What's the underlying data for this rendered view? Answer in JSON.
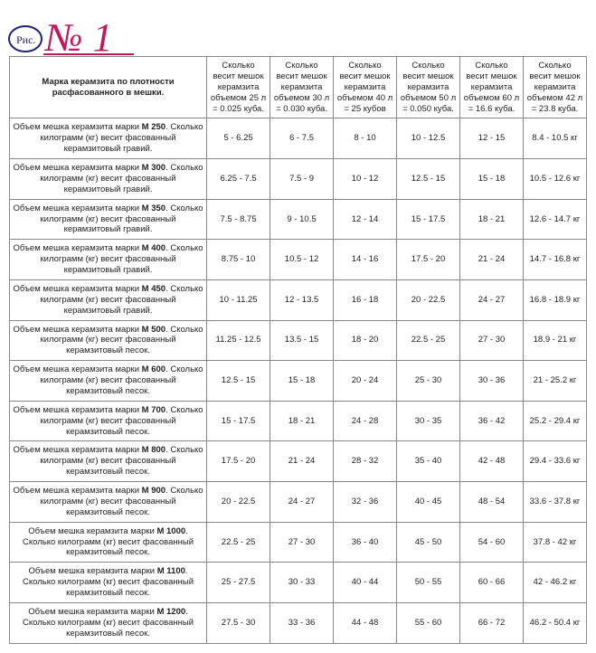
{
  "annotation": {
    "text": "№ 1",
    "prefix": "Рис."
  },
  "header": {
    "first": "Марка керамзита по плотности расфасованного в мешки.",
    "cols": [
      "Сколько весит мешок керамзита объемом 25 л = 0.025 куба.",
      "Сколько весит мешок керамзита объемом 30 л = 0.030 куба.",
      "Сколько весит мешок керамзита объемом 40 л = 25 кубов",
      "Сколько весит мешок керамзита объемом 50 л = 0.050 куба.",
      "Сколько весит мешок керамзита объемом 60 л = 16.6 куба.",
      "Сколько весит мешок керамзита объемом 42 л = 23.8 куба."
    ]
  },
  "rows": [
    {
      "label": "Объем мешка керамзита марки М 250. Сколько килограмм (кг) весит фасованный керамзитовый гравий.",
      "v": [
        "5 - 6.25",
        "6 - 7.5",
        "8 - 10",
        "10 - 12.5",
        "12 - 15",
        "8.4 - 10.5 кг"
      ]
    },
    {
      "label": "Объем мешка керамзита марки М 300. Сколько килограмм (кг) весит фасованный керамзитовый гравий.",
      "v": [
        "6.25 - 7.5",
        "7.5 - 9",
        "10 - 12",
        "12.5 - 15",
        "15 - 18",
        "10.5 - 12.6 кг"
      ]
    },
    {
      "label": "Объем мешка керамзита марки М 350. Сколько килограмм (кг) весит фасованный керамзитовый гравий.",
      "v": [
        "7.5 - 8.75",
        "9 - 10.5",
        "12 - 14",
        "15 - 17.5",
        "18 - 21",
        "12.6 - 14.7 кг"
      ]
    },
    {
      "label": "Объем мешка керамзита марки М 400. Сколько килограмм (кг) весит фасованный керамзитовый гравий.",
      "v": [
        "8.75 - 10",
        "10.5 - 12",
        "14 - 16",
        "17.5 - 20",
        "21 - 24",
        "14.7 - 16.8 кг"
      ]
    },
    {
      "label": "Объем мешка керамзита марки М 450. Сколько килограмм (кг) весит фасованный керамзитовый гравий.",
      "v": [
        "10 - 11.25",
        "12 - 13.5",
        "16 - 18",
        "20 - 22.5",
        "24 - 27",
        "16.8 - 18.9 кг"
      ]
    },
    {
      "label": "Объем мешка керамзита марки М 500. Сколько килограмм (кг) весит фасованный керамзитовый песок.",
      "v": [
        "11.25 - 12.5",
        "13.5 - 15",
        "18 - 20",
        "22.5 - 25",
        "27 - 30",
        "18.9 - 21 кг"
      ]
    },
    {
      "label": "Объем мешка керамзита марки М 600. Сколько килограмм (кг) весит фасованный керамзитовый песок.",
      "v": [
        "12.5 - 15",
        "15 - 18",
        "20 - 24",
        "25 - 30",
        "30 - 36",
        "21 - 25.2 кг"
      ]
    },
    {
      "label": "Объем мешка керамзита марки М 700. Сколько килограмм (кг) весит фасованный керамзитовый песок.",
      "v": [
        "15 - 17.5",
        "18 - 21",
        "24 - 28",
        "30 - 35",
        "36 - 42",
        "25.2 - 29.4 кг"
      ]
    },
    {
      "label": "Объем мешка керамзита марки М 800. Сколько килограмм (кг) весит фасованный керамзитовый песок.",
      "v": [
        "17.5 - 20",
        "21 - 24",
        "28 - 32",
        "35 - 40",
        "42 - 48",
        "29.4 - 33.6 кг"
      ]
    },
    {
      "label": "Объем мешка керамзита марки М 900. Сколько килограмм (кг) весит фасованный керамзитовый песок.",
      "v": [
        "20 - 22.5",
        "24 - 27",
        "32 - 36",
        "40 - 45",
        "48 - 54",
        "33.6 - 37.8 кг"
      ]
    },
    {
      "label": "Объем мешка керамзита марки М 1000. Сколько килограмм (кг) весит фасованный керамзитовый песок.",
      "v": [
        "22.5 - 25",
        "27 - 30",
        "36 - 40",
        "45 - 50",
        "54 - 60",
        "37.8 - 42 кг"
      ]
    },
    {
      "label": "Объем мешка керамзита марки М 1100. Сколько килограмм (кг) весит фасованный керамзитовый песок.",
      "v": [
        "25 - 27.5",
        "30 - 33",
        "40 - 44",
        "50 - 55",
        "60 - 66",
        "42 - 46.2 кг"
      ]
    },
    {
      "label": "Объем мешка керамзита марки М 1200. Сколько килограмм (кг) весит фасованный керамзитовый песок.",
      "v": [
        "27.5 - 30",
        "33 - 36",
        "44 - 48",
        "55 - 60",
        "66 - 72",
        "46.2 - 50.4 кг"
      ]
    }
  ]
}
